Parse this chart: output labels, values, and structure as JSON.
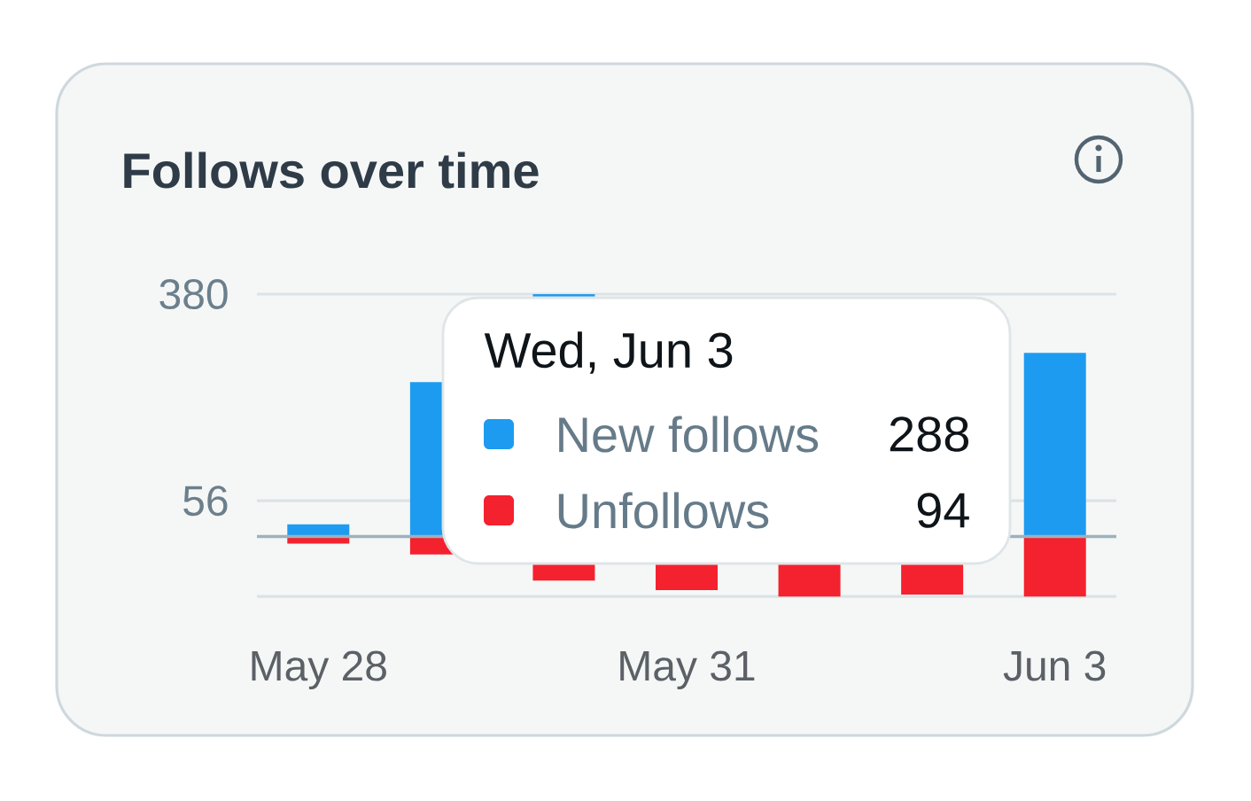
{
  "chart_data": {
    "type": "bar",
    "title": "Follows over time",
    "categories": [
      "May 28",
      null,
      null,
      "May 31",
      null,
      null,
      "Jun 3"
    ],
    "series": [
      {
        "name": "New follows",
        "color": "#1d9bf0",
        "values": [
          19,
          242,
          380,
          null,
          null,
          null,
          288
        ]
      },
      {
        "name": "Unfollows",
        "color": "#f4212e",
        "values": [
          -11,
          -28,
          -69,
          -84,
          -94,
          -91,
          -94
        ]
      }
    ],
    "stacked": true,
    "annotations": [
      "Wed, Jun 3",
      "288",
      "94"
    ],
    "ylim": [
      -94,
      380
    ],
    "yticks": [
      380,
      56,
      {
        "value": -94,
        "label": null
      }
    ],
    "grid": "y",
    "legend": "center"
  }
}
